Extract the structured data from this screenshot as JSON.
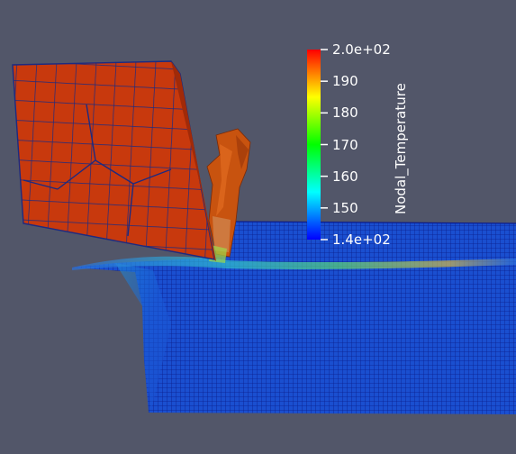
{
  "scene": {
    "background": "#525669",
    "mesh_edge_color": "#0a1c8c"
  },
  "colorbar": {
    "title": "Nodal_Temperature",
    "range": [
      140,
      200
    ],
    "colormap": [
      "#0000ff",
      "#00ffff",
      "#00ff00",
      "#ffff00",
      "#ff0000"
    ],
    "ticks": [
      {
        "value": 200,
        "label": "2.0e+02"
      },
      {
        "value": 190,
        "label": "190"
      },
      {
        "value": 180,
        "label": "180"
      },
      {
        "value": 170,
        "label": "170"
      },
      {
        "value": 160,
        "label": "160"
      },
      {
        "value": 150,
        "label": "150"
      },
      {
        "value": 140,
        "label": "1.4e+02"
      }
    ]
  }
}
